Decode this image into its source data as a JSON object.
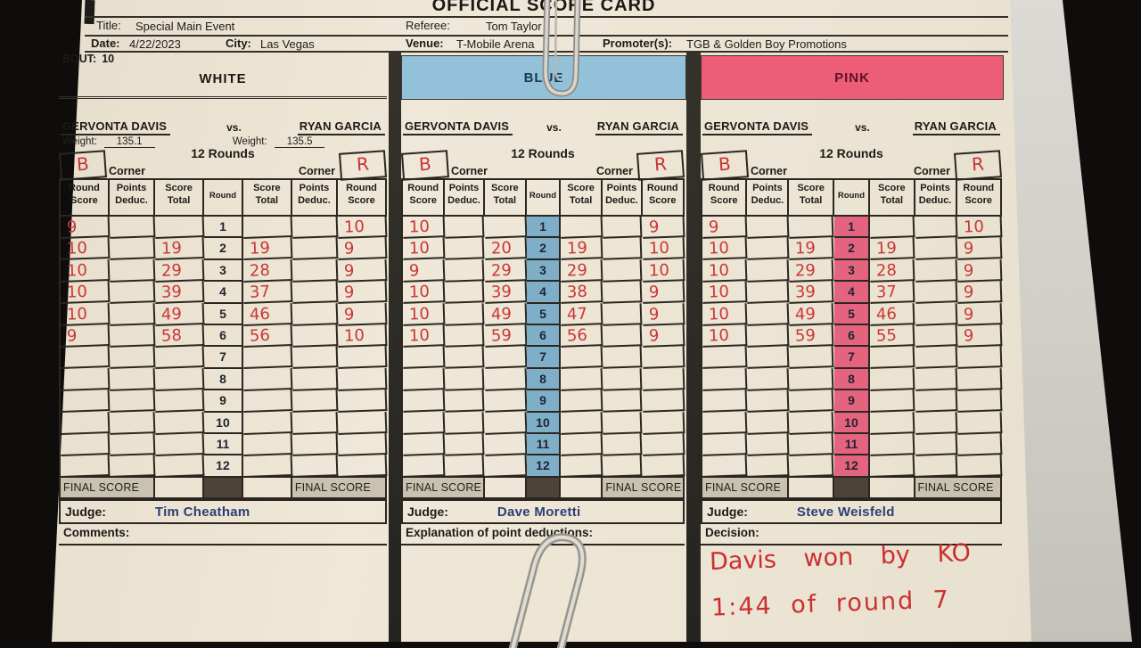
{
  "header": {
    "form_title": "OFFICIAL SCORE CARD",
    "title_label": "Title:",
    "title": "Special Main Event",
    "referee_label": "Referee:",
    "referee": "Tom Taylor",
    "date_label": "Date:",
    "date": "4/22/2023",
    "city_label": "City:",
    "city": "Las Vegas",
    "venue_label": "Venue:",
    "venue": "T-Mobile Arena",
    "promoter_label": "Promoter(s):",
    "promoter": "TGB & Golden Boy Promotions",
    "bout_label": "BOUT:",
    "bout": "10"
  },
  "labels": {
    "rounds_title": "12 Rounds",
    "corner": "Corner",
    "blue_corner_mark": "B",
    "red_corner_mark": "R",
    "col_round_score": "Round Score",
    "col_points_deduc": "Points Deduc.",
    "col_score_total": "Score Total",
    "col_round": "Round",
    "final_score": "FINAL SCORE",
    "judge_label": "Judge:",
    "weight_label": "Weight:"
  },
  "fighters": {
    "blue_corner": "GERVONTA DAVIS",
    "vs": "vs.",
    "red_corner": "RYAN GARCIA"
  },
  "weights": {
    "blue": "135.1",
    "red": "135.5"
  },
  "cards": [
    {
      "id": "white",
      "band_label": "WHITE",
      "band_color": "",
      "round_col_color": "",
      "judge": "Tim Cheatham",
      "section_label": "Comments:",
      "rounds": [
        {
          "n": 1,
          "b": "9",
          "bd": "",
          "bt": "",
          "rt": "",
          "rd": "",
          "r": "10"
        },
        {
          "n": 2,
          "b": "10",
          "bd": "",
          "bt": "19",
          "rt": "19",
          "rd": "",
          "r": "9"
        },
        {
          "n": 3,
          "b": "10",
          "bd": "",
          "bt": "29",
          "rt": "28",
          "rd": "",
          "r": "9"
        },
        {
          "n": 4,
          "b": "10",
          "bd": "",
          "bt": "39",
          "rt": "37",
          "rd": "",
          "r": "9"
        },
        {
          "n": 5,
          "b": "10",
          "bd": "",
          "bt": "49",
          "rt": "46",
          "rd": "",
          "r": "9"
        },
        {
          "n": 6,
          "b": "9",
          "bd": "",
          "bt": "58",
          "rt": "56",
          "rd": "",
          "r": "10"
        },
        {
          "n": 7,
          "b": "",
          "bd": "",
          "bt": "",
          "rt": "",
          "rd": "",
          "r": ""
        },
        {
          "n": 8,
          "b": "",
          "bd": "",
          "bt": "",
          "rt": "",
          "rd": "",
          "r": ""
        },
        {
          "n": 9,
          "b": "",
          "bd": "",
          "bt": "",
          "rt": "",
          "rd": "",
          "r": ""
        },
        {
          "n": 10,
          "b": "",
          "bd": "",
          "bt": "",
          "rt": "",
          "rd": "",
          "r": ""
        },
        {
          "n": 11,
          "b": "",
          "bd": "",
          "bt": "",
          "rt": "",
          "rd": "",
          "r": ""
        },
        {
          "n": 12,
          "b": "",
          "bd": "",
          "bt": "",
          "rt": "",
          "rd": "",
          "r": ""
        }
      ]
    },
    {
      "id": "blue",
      "band_label": "BLUE",
      "band_color": "#93c1d9",
      "round_col_color": "#7fafc8",
      "judge": "Dave Moretti",
      "section_label": "Explanation of point deductions:",
      "rounds": [
        {
          "n": 1,
          "b": "10",
          "bd": "",
          "bt": "",
          "rt": "",
          "rd": "",
          "r": "9"
        },
        {
          "n": 2,
          "b": "10",
          "bd": "",
          "bt": "20",
          "rt": "19",
          "rd": "",
          "r": "10"
        },
        {
          "n": 3,
          "b": "9",
          "bd": "",
          "bt": "29",
          "rt": "29",
          "rd": "",
          "r": "10"
        },
        {
          "n": 4,
          "b": "10",
          "bd": "",
          "bt": "39",
          "rt": "38",
          "rd": "",
          "r": "9"
        },
        {
          "n": 5,
          "b": "10",
          "bd": "",
          "bt": "49",
          "rt": "47",
          "rd": "",
          "r": "9"
        },
        {
          "n": 6,
          "b": "10",
          "bd": "",
          "bt": "59",
          "rt": "56",
          "rd": "",
          "r": "9"
        },
        {
          "n": 7,
          "b": "",
          "bd": "",
          "bt": "",
          "rt": "",
          "rd": "",
          "r": ""
        },
        {
          "n": 8,
          "b": "",
          "bd": "",
          "bt": "",
          "rt": "",
          "rd": "",
          "r": ""
        },
        {
          "n": 9,
          "b": "",
          "bd": "",
          "bt": "",
          "rt": "",
          "rd": "",
          "r": ""
        },
        {
          "n": 10,
          "b": "",
          "bd": "",
          "bt": "",
          "rt": "",
          "rd": "",
          "r": ""
        },
        {
          "n": 11,
          "b": "",
          "bd": "",
          "bt": "",
          "rt": "",
          "rd": "",
          "r": ""
        },
        {
          "n": 12,
          "b": "",
          "bd": "",
          "bt": "",
          "rt": "",
          "rd": "",
          "r": ""
        }
      ]
    },
    {
      "id": "pink",
      "band_label": "PINK",
      "band_color": "#ee5d78",
      "round_col_color": "#e4647f",
      "judge": "Steve Weisfeld",
      "section_label": "Decision:",
      "rounds": [
        {
          "n": 1,
          "b": "9",
          "bd": "",
          "bt": "",
          "rt": "",
          "rd": "",
          "r": "10"
        },
        {
          "n": 2,
          "b": "10",
          "bd": "",
          "bt": "19",
          "rt": "19",
          "rd": "",
          "r": "9"
        },
        {
          "n": 3,
          "b": "10",
          "bd": "",
          "bt": "29",
          "rt": "28",
          "rd": "",
          "r": "9"
        },
        {
          "n": 4,
          "b": "10",
          "bd": "",
          "bt": "39",
          "rt": "37",
          "rd": "",
          "r": "9"
        },
        {
          "n": 5,
          "b": "10",
          "bd": "",
          "bt": "49",
          "rt": "46",
          "rd": "",
          "r": "9"
        },
        {
          "n": 6,
          "b": "10",
          "bd": "",
          "bt": "59",
          "rt": "55",
          "rd": "",
          "r": "9"
        },
        {
          "n": 7,
          "b": "",
          "bd": "",
          "bt": "",
          "rt": "",
          "rd": "",
          "r": ""
        },
        {
          "n": 8,
          "b": "",
          "bd": "",
          "bt": "",
          "rt": "",
          "rd": "",
          "r": ""
        },
        {
          "n": 9,
          "b": "",
          "bd": "",
          "bt": "",
          "rt": "",
          "rd": "",
          "r": ""
        },
        {
          "n": 10,
          "b": "",
          "bd": "",
          "bt": "",
          "rt": "",
          "rd": "",
          "r": ""
        },
        {
          "n": 11,
          "b": "",
          "bd": "",
          "bt": "",
          "rt": "",
          "rd": "",
          "r": ""
        },
        {
          "n": 12,
          "b": "",
          "bd": "",
          "bt": "",
          "rt": "",
          "rd": "",
          "r": ""
        }
      ]
    }
  ],
  "decision_text": {
    "line1": "Davis won by KO",
    "line2": "1:44 of round 7"
  }
}
